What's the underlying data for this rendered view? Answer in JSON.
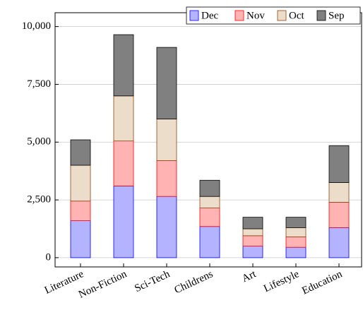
{
  "chart_data": {
    "type": "stacked_bar",
    "categories": [
      "Literature",
      "Non-Fiction",
      "Sci-Tech",
      "Childrens",
      "Art",
      "Lifestyle",
      "Education"
    ],
    "series": [
      {
        "name": "Dec",
        "color": "#b3b3ff",
        "edge_color": "#0000ff",
        "values": [
          1600,
          3100,
          2650,
          1350,
          500,
          450,
          1300
        ]
      },
      {
        "name": "Nov",
        "color": "#ffb3b3",
        "edge_color": "#ff0000",
        "values": [
          850,
          1950,
          1550,
          800,
          450,
          450,
          1100
        ]
      },
      {
        "name": "Oct",
        "color": "#ecdcca",
        "edge_color": "#8b4513",
        "values": [
          1550,
          1950,
          1800,
          500,
          300,
          400,
          850
        ]
      },
      {
        "name": "Sep",
        "color": "#808080",
        "edge_color": "#000000",
        "values": [
          1100,
          2650,
          3100,
          700,
          500,
          450,
          1600
        ]
      }
    ],
    "ylim": [
      -400,
      10600
    ],
    "yticks": [
      0,
      {
        "value": 2500,
        "label": "2,500"
      },
      {
        "value": 5000,
        "label": "5,000"
      },
      {
        "value": 7500,
        "label": "7,500"
      },
      {
        "value": 10000,
        "label": "10,000"
      }
    ],
    "grid": true,
    "legend": "upper right"
  }
}
